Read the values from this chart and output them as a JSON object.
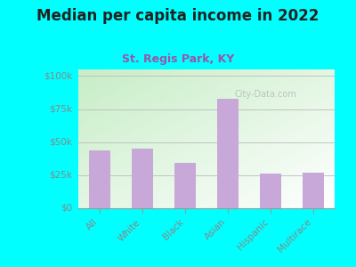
{
  "title": "Median per capita income in 2022",
  "subtitle": "St. Regis Park, KY",
  "categories": [
    "All",
    "White",
    "Black",
    "Asian",
    "Hispanic",
    "Multirace"
  ],
  "values": [
    44000,
    45000,
    34000,
    83000,
    26000,
    27000
  ],
  "bar_color": "#c8a8d8",
  "background_outer": "#00FFFF",
  "background_inner_left": "#c8e8c0",
  "background_inner_right": "#f0fff0",
  "title_color": "#222222",
  "subtitle_color": "#9955AA",
  "tick_label_color": "#888888",
  "yticks": [
    0,
    25000,
    50000,
    75000,
    100000
  ],
  "ytick_labels": [
    "$0",
    "$25k",
    "$50k",
    "$75k",
    "$100k"
  ],
  "ylim": [
    0,
    105000
  ],
  "watermark": "City-Data.com"
}
